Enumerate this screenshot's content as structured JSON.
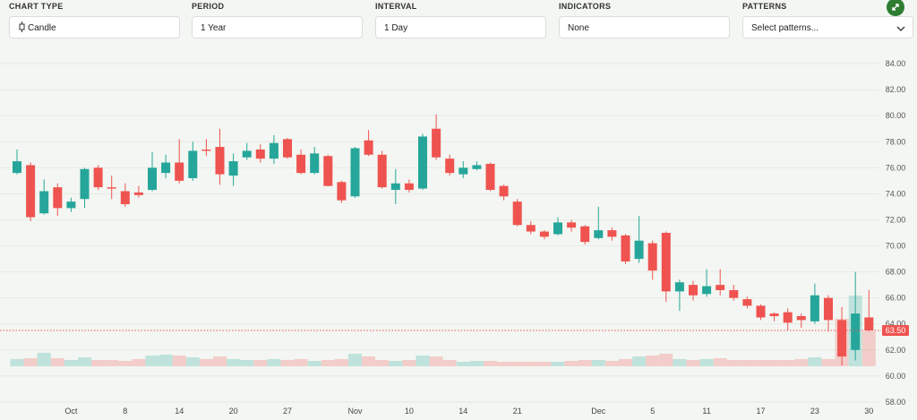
{
  "controls": [
    {
      "label": "CHART TYPE",
      "value": "Candle"
    },
    {
      "label": "PERIOD",
      "value": "1 Year"
    },
    {
      "label": "INTERVAL",
      "value": "1 Day"
    },
    {
      "label": "INDICATORS",
      "value": "None"
    },
    {
      "label": "PATTERNS",
      "value": "Select patterns..."
    }
  ],
  "chart_data": {
    "type": "candlestick",
    "categories": [
      null,
      null,
      null,
      null,
      "Oct",
      null,
      null,
      null,
      "8",
      null,
      null,
      null,
      "14",
      null,
      null,
      null,
      "20",
      null,
      null,
      null,
      "27",
      null,
      null,
      null,
      null,
      "Nov",
      null,
      null,
      null,
      "10",
      null,
      null,
      null,
      "14",
      null,
      null,
      null,
      "21",
      null,
      null,
      null,
      null,
      null,
      "Dec",
      null,
      null,
      null,
      "5",
      null,
      null,
      null,
      "11",
      null,
      null,
      null,
      "17",
      null,
      null,
      null,
      "23",
      null,
      null,
      null,
      "30"
    ],
    "open": [
      75.6,
      76.2,
      72.5,
      74.5,
      72.9,
      73.6,
      76.0,
      74.5,
      74.2,
      74.1,
      74.3,
      75.6,
      76.4,
      75.2,
      77.4,
      77.6,
      75.4,
      76.8,
      77.4,
      76.7,
      78.2,
      77.0,
      75.6,
      76.9,
      74.9,
      73.8,
      78.1,
      77.0,
      74.3,
      74.8,
      74.4,
      79.0,
      76.7,
      75.5,
      75.9,
      76.3,
      74.6,
      73.4,
      71.6,
      71.1,
      70.9,
      71.8,
      71.5,
      70.6,
      71.2,
      70.8,
      69.0,
      70.2,
      71.0,
      66.5,
      67.0,
      66.3,
      67.0,
      66.6,
      65.9,
      65.4,
      64.8,
      64.9,
      64.6,
      64.2,
      66.0,
      64.3,
      62.0,
      64.5
    ],
    "high": [
      77.4,
      76.4,
      75.1,
      74.8,
      73.7,
      76.0,
      76.2,
      75.4,
      74.8,
      74.6,
      77.2,
      77.0,
      78.2,
      78.0,
      78.2,
      79.0,
      77.1,
      77.9,
      77.8,
      78.5,
      78.3,
      77.4,
      77.6,
      77.0,
      75.0,
      77.6,
      78.9,
      77.3,
      75.9,
      75.1,
      78.6,
      80.1,
      77.0,
      76.5,
      76.5,
      76.4,
      74.7,
      73.6,
      71.9,
      71.2,
      72.2,
      72.0,
      71.6,
      73.0,
      71.4,
      70.9,
      72.3,
      70.4,
      71.1,
      67.4,
      67.3,
      68.2,
      68.2,
      67.0,
      66.1,
      65.5,
      64.9,
      65.2,
      64.8,
      67.1,
      66.2,
      65.3,
      68.0,
      66.6
    ],
    "low": [
      75.5,
      71.9,
      72.4,
      72.3,
      72.6,
      72.9,
      74.3,
      73.6,
      73.0,
      73.7,
      74.2,
      75.2,
      74.8,
      75.0,
      76.9,
      74.7,
      74.6,
      76.6,
      76.4,
      76.3,
      76.7,
      75.5,
      75.5,
      74.6,
      73.3,
      73.7,
      76.9,
      74.4,
      73.2,
      74.1,
      74.3,
      76.6,
      75.4,
      75.2,
      75.8,
      74.2,
      73.5,
      71.5,
      70.9,
      70.5,
      70.8,
      71.1,
      70.1,
      70.5,
      70.4,
      68.6,
      68.7,
      67.4,
      65.7,
      65.0,
      65.8,
      66.1,
      66.2,
      65.8,
      65.2,
      64.3,
      64.2,
      63.5,
      63.7,
      64.0,
      63.4,
      60.8,
      61.2,
      63.4
    ],
    "close": [
      76.5,
      72.2,
      74.2,
      72.9,
      73.4,
      75.9,
      74.5,
      74.4,
      73.2,
      73.9,
      76.0,
      76.4,
      75.0,
      77.3,
      77.3,
      75.5,
      76.5,
      77.3,
      76.7,
      77.9,
      76.8,
      75.6,
      77.1,
      74.6,
      73.5,
      77.5,
      77.0,
      74.5,
      74.8,
      74.3,
      78.4,
      76.8,
      75.6,
      76.0,
      76.2,
      74.3,
      73.8,
      71.6,
      71.1,
      70.7,
      71.8,
      71.4,
      70.3,
      71.2,
      70.7,
      68.8,
      70.4,
      68.1,
      66.5,
      67.2,
      66.2,
      66.9,
      66.6,
      66.0,
      65.4,
      64.5,
      64.6,
      64.1,
      64.3,
      66.2,
      64.3,
      61.5,
      64.8,
      63.5
    ],
    "volume": [
      8,
      9,
      15,
      9,
      7,
      10,
      7,
      7,
      6,
      8,
      12,
      13,
      12,
      10,
      8,
      11,
      8,
      7,
      7,
      8,
      7,
      8,
      6,
      7,
      8,
      14,
      11,
      7,
      6,
      7,
      12,
      11,
      7,
      5,
      6,
      6,
      5,
      5,
      5,
      5,
      5,
      6,
      7,
      7,
      6,
      8,
      11,
      12,
      14,
      8,
      7,
      8,
      9,
      7,
      7,
      7,
      7,
      7,
      8,
      10,
      8,
      53,
      79,
      39
    ],
    "up_color": "#26a69a",
    "down_color": "#ef5350",
    "ylim": [
      57.24,
      84.76
    ],
    "yticks": [
      {
        "value": 84,
        "label": "84.00"
      },
      {
        "value": 82,
        "label": "82.00"
      },
      {
        "value": 80,
        "label": "80.00"
      },
      {
        "value": 78,
        "label": "78.00"
      },
      {
        "value": 76,
        "label": "76.00"
      },
      {
        "value": 74,
        "label": "74.00"
      },
      {
        "value": 72,
        "label": "72.00"
      },
      {
        "value": 70,
        "label": "70.00"
      },
      {
        "value": 68,
        "label": "68.00"
      },
      {
        "value": 66,
        "label": "66.00"
      },
      {
        "value": 64,
        "label": "64.00"
      },
      {
        "value": 62,
        "label": "62.00"
      },
      {
        "value": 60,
        "label": "60.00"
      },
      {
        "value": 58,
        "label": "58.00"
      }
    ],
    "last_price": {
      "value": 63.5,
      "label": "63.50"
    },
    "grid": true
  }
}
